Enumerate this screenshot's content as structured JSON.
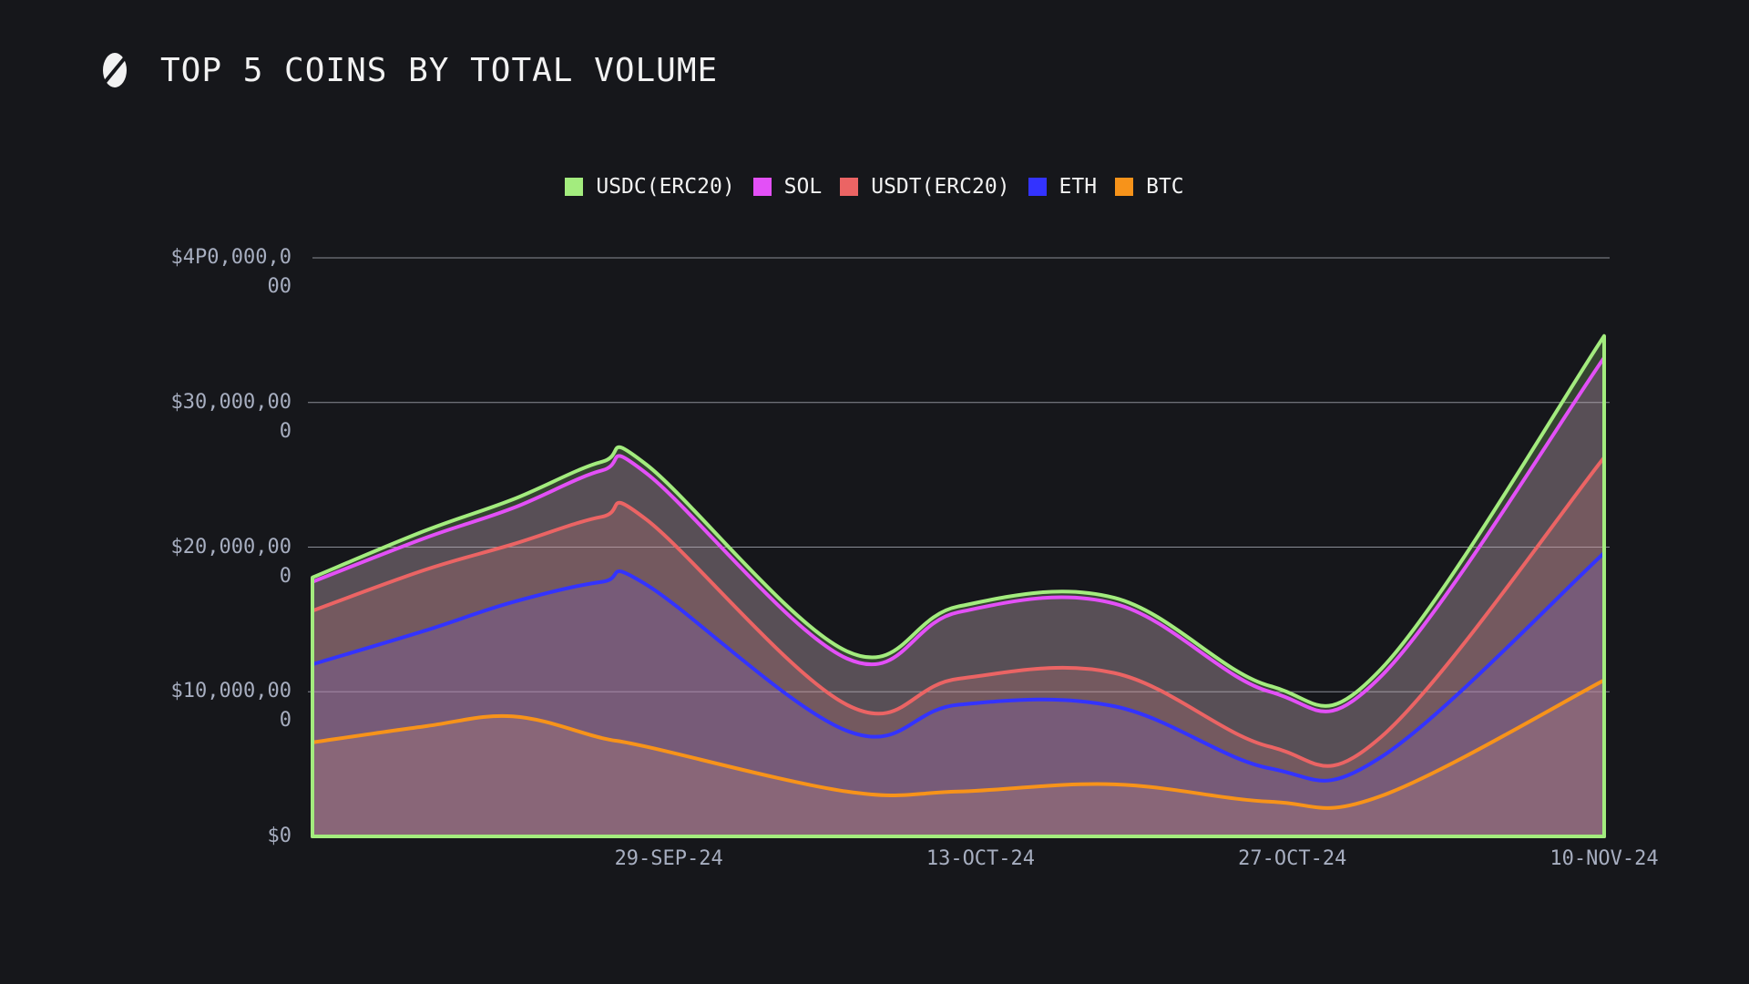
{
  "header": {
    "title": "TOP 5 COINS BY TOTAL VOLUME",
    "logo": "logo-icon"
  },
  "chart_data": {
    "type": "area",
    "stacked": true,
    "title": "TOP 5 COINS BY TOTAL VOLUME",
    "xlabel": "",
    "ylabel": "",
    "ylim": [
      0,
      40000000
    ],
    "yticks": [
      {
        "value": 0,
        "label": "$0"
      },
      {
        "value": 10000000,
        "label": "$10,000,000"
      },
      {
        "value": 20000000,
        "label": "$20,000,000"
      },
      {
        "value": 30000000,
        "label": "$30,000,000"
      },
      {
        "value": 40000000,
        "label": "$4P0,000,000"
      }
    ],
    "xticks": [
      {
        "date": "2024-09-29",
        "label": "29-SEP-24"
      },
      {
        "date": "2024-10-13",
        "label": "13-OCT-24"
      },
      {
        "date": "2024-10-27",
        "label": "27-OCT-24"
      },
      {
        "date": "2024-11-10",
        "label": "10-NOV-24"
      }
    ],
    "xlim": [
      "2024-09-13",
      "2024-11-10"
    ],
    "grid": true,
    "legend_position": "top-center",
    "x": [
      "2024-09-13",
      "2024-09-18",
      "2024-09-22",
      "2024-09-26",
      "2024-09-28",
      "2024-10-07",
      "2024-10-12",
      "2024-10-19",
      "2024-10-26",
      "2024-10-31",
      "2024-11-10"
    ],
    "series": [
      {
        "name": "BTC",
        "color": "#f7931a",
        "values": [
          6.5,
          7.6,
          8.3,
          6.8,
          6.2,
          3.1,
          3.1,
          3.6,
          2.4,
          2.8,
          10.8
        ]
      },
      {
        "name": "ETH",
        "color": "#3333ff",
        "values": [
          5.4,
          6.6,
          7.9,
          10.8,
          11.2,
          4.2,
          6.0,
          5.4,
          2.3,
          2.7,
          8.8
        ]
      },
      {
        "name": "USDT(ERC20)",
        "color": "#eb6464",
        "values": [
          3.7,
          4.2,
          4.0,
          4.5,
          4.5,
          1.8,
          1.8,
          2.3,
          1.5,
          1.4,
          6.6
        ]
      },
      {
        "name": "SOL",
        "color": "#e350f7",
        "values": [
          2.0,
          2.2,
          2.5,
          3.2,
          3.2,
          3.2,
          4.6,
          4.8,
          3.8,
          4.2,
          6.9
        ]
      },
      {
        "name": "USDC(ERC20)",
        "color": "#a3ec7e",
        "values": [
          0.3,
          0.5,
          0.6,
          0.6,
          0.6,
          0.5,
          0.4,
          0.4,
          0.4,
          0.5,
          1.5
        ]
      }
    ],
    "value_unit": "millions USD",
    "legend_order": [
      "USDC(ERC20)",
      "SOL",
      "USDT(ERC20)",
      "ETH",
      "BTC"
    ]
  }
}
